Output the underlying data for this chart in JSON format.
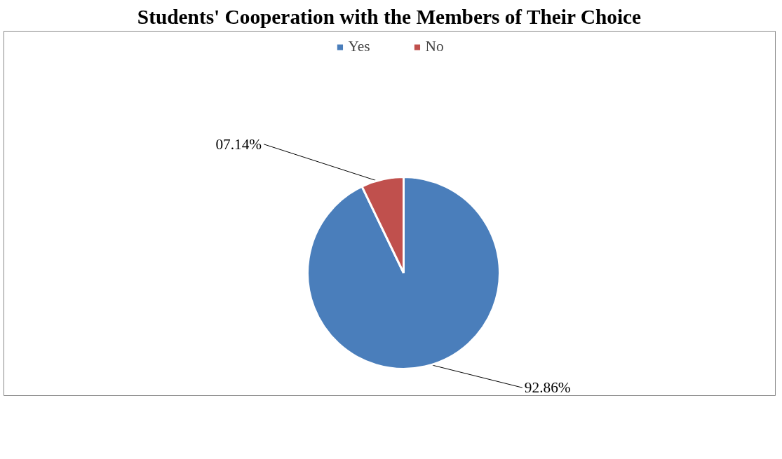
{
  "chart_data": {
    "type": "pie",
    "title": "Students' Cooperation with the Members of Their Choice",
    "categories": [
      "Yes",
      "No"
    ],
    "values": [
      92.86,
      7.14
    ],
    "colors": [
      "#4a7ebb",
      "#c0504d"
    ],
    "value_labels": [
      "92.86%",
      "07.14%"
    ],
    "legend": "top"
  }
}
